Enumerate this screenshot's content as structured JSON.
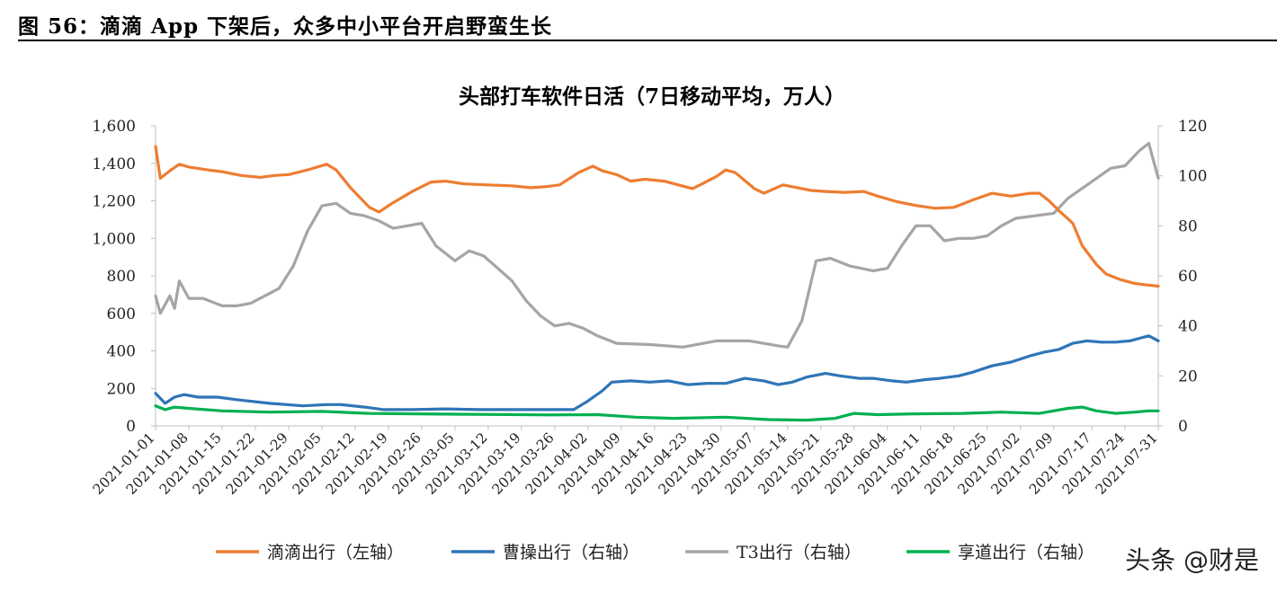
{
  "figure": {
    "title": "图 56：滴滴 App 下架后，众多中小平台开启野蛮生长"
  },
  "watermark": {
    "text": "头条 @财是"
  },
  "chart_data": {
    "type": "line",
    "title": "头部打车软件日活（7日移动平均，万人）",
    "grid": false,
    "legend_position": "bottom",
    "x_ticks": [
      "2021-01-01",
      "2021-01-08",
      "2021-01-15",
      "2021-01-22",
      "2021-01-29",
      "2021-02-05",
      "2021-02-12",
      "2021-02-19",
      "2021-02-26",
      "2021-03-05",
      "2021-03-12",
      "2021-03-19",
      "2021-03-26",
      "2021-04-02",
      "2021-04-09",
      "2021-04-16",
      "2021-04-23",
      "2021-04-30",
      "2021-05-07",
      "2021-05-14",
      "2021-05-21",
      "2021-05-28",
      "2021-06-04",
      "2021-06-11",
      "2021-06-18",
      "2021-06-25",
      "2021-07-02",
      "2021-07-09",
      "2021-07-17",
      "2021-07-24",
      "2021-07-31"
    ],
    "x_range": [
      "2021-01-01",
      "2021-07-31"
    ],
    "y_left": {
      "min": 0,
      "max": 1600,
      "ticks": [
        "0",
        "200",
        "400",
        "600",
        "800",
        "1,000",
        "1,200",
        "1,400",
        "1,600"
      ]
    },
    "y_right": {
      "min": 0,
      "max": 120,
      "ticks": [
        "0",
        "20",
        "40",
        "60",
        "80",
        "100",
        "120"
      ]
    },
    "series": [
      {
        "name": "滴滴出行（左轴）",
        "axis": "left",
        "color": "#ED7D31",
        "points": [
          [
            "2021-01-01",
            1490
          ],
          [
            "2021-01-02",
            1320
          ],
          [
            "2021-01-04",
            1360
          ],
          [
            "2021-01-06",
            1395
          ],
          [
            "2021-01-08",
            1380
          ],
          [
            "2021-01-12",
            1365
          ],
          [
            "2021-01-15",
            1355
          ],
          [
            "2021-01-19",
            1335
          ],
          [
            "2021-01-23",
            1325
          ],
          [
            "2021-01-26",
            1335
          ],
          [
            "2021-01-29",
            1340
          ],
          [
            "2021-02-02",
            1365
          ],
          [
            "2021-02-06",
            1395
          ],
          [
            "2021-02-08",
            1365
          ],
          [
            "2021-02-11",
            1270
          ],
          [
            "2021-02-15",
            1165
          ],
          [
            "2021-02-17",
            1140
          ],
          [
            "2021-02-20",
            1190
          ],
          [
            "2021-02-24",
            1250
          ],
          [
            "2021-02-28",
            1300
          ],
          [
            "2021-03-03",
            1305
          ],
          [
            "2021-03-07",
            1290
          ],
          [
            "2021-03-12",
            1285
          ],
          [
            "2021-03-17",
            1280
          ],
          [
            "2021-03-21",
            1270
          ],
          [
            "2021-03-24",
            1275
          ],
          [
            "2021-03-27",
            1285
          ],
          [
            "2021-03-31",
            1350
          ],
          [
            "2021-04-03",
            1385
          ],
          [
            "2021-04-05",
            1360
          ],
          [
            "2021-04-08",
            1340
          ],
          [
            "2021-04-11",
            1305
          ],
          [
            "2021-04-14",
            1315
          ],
          [
            "2021-04-18",
            1305
          ],
          [
            "2021-04-21",
            1285
          ],
          [
            "2021-04-24",
            1265
          ],
          [
            "2021-04-26",
            1290
          ],
          [
            "2021-04-29",
            1330
          ],
          [
            "2021-05-01",
            1365
          ],
          [
            "2021-05-03",
            1350
          ],
          [
            "2021-05-07",
            1265
          ],
          [
            "2021-05-09",
            1240
          ],
          [
            "2021-05-13",
            1285
          ],
          [
            "2021-05-15",
            1275
          ],
          [
            "2021-05-19",
            1255
          ],
          [
            "2021-05-22",
            1250
          ],
          [
            "2021-05-26",
            1245
          ],
          [
            "2021-05-30",
            1250
          ],
          [
            "2021-06-02",
            1225
          ],
          [
            "2021-06-06",
            1195
          ],
          [
            "2021-06-10",
            1175
          ],
          [
            "2021-06-14",
            1160
          ],
          [
            "2021-06-18",
            1165
          ],
          [
            "2021-06-22",
            1205
          ],
          [
            "2021-06-26",
            1240
          ],
          [
            "2021-06-30",
            1225
          ],
          [
            "2021-07-04",
            1240
          ],
          [
            "2021-07-06",
            1240
          ],
          [
            "2021-07-08",
            1200
          ],
          [
            "2021-07-10",
            1150
          ],
          [
            "2021-07-13",
            1080
          ],
          [
            "2021-07-15",
            960
          ],
          [
            "2021-07-18",
            860
          ],
          [
            "2021-07-20",
            810
          ],
          [
            "2021-07-23",
            780
          ],
          [
            "2021-07-26",
            760
          ],
          [
            "2021-07-29",
            750
          ],
          [
            "2021-07-31",
            745
          ]
        ]
      },
      {
        "name": "曹操出行（右轴）",
        "axis": "right",
        "color": "#2E75B6",
        "points": [
          [
            "2021-01-01",
            13
          ],
          [
            "2021-01-03",
            9
          ],
          [
            "2021-01-05",
            11.5
          ],
          [
            "2021-01-07",
            12.5
          ],
          [
            "2021-01-10",
            11.5
          ],
          [
            "2021-01-14",
            11.5
          ],
          [
            "2021-01-18",
            10.5
          ],
          [
            "2021-01-25",
            9
          ],
          [
            "2021-02-01",
            8
          ],
          [
            "2021-02-06",
            8.5
          ],
          [
            "2021-02-09",
            8.5
          ],
          [
            "2021-02-14",
            7.5
          ],
          [
            "2021-02-18",
            6.5
          ],
          [
            "2021-02-24",
            6.5
          ],
          [
            "2021-03-03",
            6.8
          ],
          [
            "2021-03-10",
            6.5
          ],
          [
            "2021-03-20",
            6.5
          ],
          [
            "2021-03-30",
            6.5
          ],
          [
            "2021-04-02",
            10
          ],
          [
            "2021-04-05",
            14
          ],
          [
            "2021-04-07",
            17.5
          ],
          [
            "2021-04-11",
            18
          ],
          [
            "2021-04-15",
            17.5
          ],
          [
            "2021-04-19",
            18
          ],
          [
            "2021-04-23",
            16.5
          ],
          [
            "2021-04-27",
            17
          ],
          [
            "2021-05-01",
            17
          ],
          [
            "2021-05-05",
            19
          ],
          [
            "2021-05-09",
            18
          ],
          [
            "2021-05-12",
            16.5
          ],
          [
            "2021-05-15",
            17.5
          ],
          [
            "2021-05-18",
            19.5
          ],
          [
            "2021-05-22",
            21
          ],
          [
            "2021-05-25",
            20
          ],
          [
            "2021-05-29",
            19
          ],
          [
            "2021-06-01",
            19
          ],
          [
            "2021-06-05",
            18
          ],
          [
            "2021-06-08",
            17.5
          ],
          [
            "2021-06-12",
            18.5
          ],
          [
            "2021-06-15",
            19
          ],
          [
            "2021-06-19",
            20
          ],
          [
            "2021-06-22",
            21.5
          ],
          [
            "2021-06-26",
            24
          ],
          [
            "2021-06-30",
            25.5
          ],
          [
            "2021-07-04",
            28
          ],
          [
            "2021-07-07",
            29.5
          ],
          [
            "2021-07-10",
            30.5
          ],
          [
            "2021-07-13",
            33
          ],
          [
            "2021-07-16",
            34
          ],
          [
            "2021-07-19",
            33.5
          ],
          [
            "2021-07-22",
            33.5
          ],
          [
            "2021-07-25",
            34
          ],
          [
            "2021-07-28",
            35.5
          ],
          [
            "2021-07-29",
            36
          ],
          [
            "2021-07-30",
            35
          ],
          [
            "2021-07-31",
            34
          ]
        ]
      },
      {
        "name": "T3出行（右轴）",
        "axis": "right",
        "color": "#A5A5A5",
        "points": [
          [
            "2021-01-01",
            52
          ],
          [
            "2021-01-02",
            45
          ],
          [
            "2021-01-04",
            52
          ],
          [
            "2021-01-05",
            47
          ],
          [
            "2021-01-06",
            58
          ],
          [
            "2021-01-08",
            51
          ],
          [
            "2021-01-11",
            51
          ],
          [
            "2021-01-15",
            48
          ],
          [
            "2021-01-18",
            48
          ],
          [
            "2021-01-21",
            49
          ],
          [
            "2021-01-24",
            52
          ],
          [
            "2021-01-27",
            55
          ],
          [
            "2021-01-30",
            64
          ],
          [
            "2021-02-02",
            78
          ],
          [
            "2021-02-05",
            88
          ],
          [
            "2021-02-08",
            89
          ],
          [
            "2021-02-11",
            85
          ],
          [
            "2021-02-14",
            84
          ],
          [
            "2021-02-17",
            82
          ],
          [
            "2021-02-20",
            79
          ],
          [
            "2021-02-23",
            80
          ],
          [
            "2021-02-26",
            81
          ],
          [
            "2021-03-01",
            72
          ],
          [
            "2021-03-05",
            66
          ],
          [
            "2021-03-08",
            70
          ],
          [
            "2021-03-11",
            68
          ],
          [
            "2021-03-14",
            63
          ],
          [
            "2021-03-17",
            58
          ],
          [
            "2021-03-20",
            50
          ],
          [
            "2021-03-23",
            44
          ],
          [
            "2021-03-26",
            40
          ],
          [
            "2021-03-29",
            41
          ],
          [
            "2021-04-01",
            39
          ],
          [
            "2021-04-04",
            36
          ],
          [
            "2021-04-08",
            33
          ],
          [
            "2021-04-15",
            32.5
          ],
          [
            "2021-04-22",
            31.5
          ],
          [
            "2021-04-29",
            34
          ],
          [
            "2021-05-06",
            34
          ],
          [
            "2021-05-12",
            32
          ],
          [
            "2021-05-14",
            31.5
          ],
          [
            "2021-05-17",
            42
          ],
          [
            "2021-05-20",
            66
          ],
          [
            "2021-05-23",
            67
          ],
          [
            "2021-05-27",
            64
          ],
          [
            "2021-06-01",
            62
          ],
          [
            "2021-06-04",
            63
          ],
          [
            "2021-06-07",
            72
          ],
          [
            "2021-06-10",
            80
          ],
          [
            "2021-06-13",
            80
          ],
          [
            "2021-06-16",
            74
          ],
          [
            "2021-06-19",
            75
          ],
          [
            "2021-06-22",
            75
          ],
          [
            "2021-06-25",
            76
          ],
          [
            "2021-06-28",
            80
          ],
          [
            "2021-07-01",
            83
          ],
          [
            "2021-07-05",
            84
          ],
          [
            "2021-07-09",
            85
          ],
          [
            "2021-07-12",
            91
          ],
          [
            "2021-07-15",
            95
          ],
          [
            "2021-07-18",
            99
          ],
          [
            "2021-07-21",
            103
          ],
          [
            "2021-07-24",
            104
          ],
          [
            "2021-07-27",
            110
          ],
          [
            "2021-07-29",
            113
          ],
          [
            "2021-07-31",
            99
          ]
        ]
      },
      {
        "name": "享道出行（右轴）",
        "axis": "right",
        "color": "#00B050",
        "points": [
          [
            "2021-01-01",
            8
          ],
          [
            "2021-01-03",
            6.5
          ],
          [
            "2021-01-05",
            7.5
          ],
          [
            "2021-01-08",
            7
          ],
          [
            "2021-01-15",
            6
          ],
          [
            "2021-01-25",
            5.5
          ],
          [
            "2021-02-05",
            5.8
          ],
          [
            "2021-02-15",
            5
          ],
          [
            "2021-02-25",
            4.8
          ],
          [
            "2021-03-10",
            4.6
          ],
          [
            "2021-03-25",
            4.4
          ],
          [
            "2021-04-04",
            4.5
          ],
          [
            "2021-04-12",
            3.5
          ],
          [
            "2021-04-20",
            3
          ],
          [
            "2021-05-01",
            3.5
          ],
          [
            "2021-05-10",
            2.5
          ],
          [
            "2021-05-18",
            2.3
          ],
          [
            "2021-05-24",
            3
          ],
          [
            "2021-05-28",
            5
          ],
          [
            "2021-06-02",
            4.5
          ],
          [
            "2021-06-10",
            4.8
          ],
          [
            "2021-06-20",
            5
          ],
          [
            "2021-06-28",
            5.5
          ],
          [
            "2021-07-06",
            5
          ],
          [
            "2021-07-12",
            7
          ],
          [
            "2021-07-15",
            7.5
          ],
          [
            "2021-07-18",
            6
          ],
          [
            "2021-07-22",
            5
          ],
          [
            "2021-07-26",
            5.5
          ],
          [
            "2021-07-29",
            6
          ],
          [
            "2021-07-31",
            6
          ]
        ]
      }
    ]
  }
}
